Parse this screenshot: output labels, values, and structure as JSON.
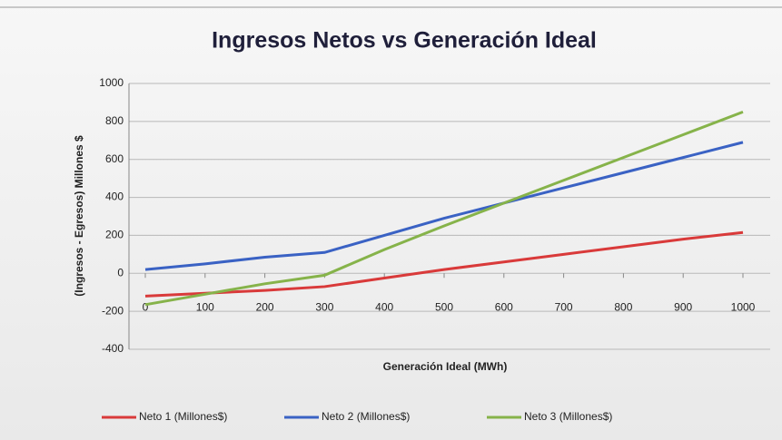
{
  "chart_data": {
    "type": "line",
    "title": "Ingresos Netos vs Generación Ideal",
    "x_label": "Generación Ideal (MWh)",
    "y_label": "(Ingresos - Egresos) Millones $",
    "x": [
      0,
      100,
      200,
      300,
      400,
      500,
      600,
      700,
      800,
      900,
      1000
    ],
    "series": [
      {
        "name": "Neto 1 (Millones$)",
        "color": "#d93a3a",
        "values": [
          -120,
          -105,
          -90,
          -70,
          -25,
          20,
          60,
          100,
          140,
          180,
          215
        ]
      },
      {
        "name": "Neto 2 (Millones$)",
        "color": "#3a62c4",
        "values": [
          20,
          50,
          85,
          110,
          200,
          290,
          370,
          450,
          530,
          610,
          690
        ]
      },
      {
        "name": "Neto 3 (Millones$)",
        "color": "#86b34a",
        "values": [
          -165,
          -110,
          -55,
          -10,
          125,
          250,
          370,
          490,
          610,
          730,
          850
        ]
      }
    ],
    "xlim": [
      0,
      1000
    ],
    "xticks": [
      0,
      100,
      200,
      300,
      400,
      500,
      600,
      700,
      800,
      900,
      1000
    ],
    "ylim": [
      -400,
      1000
    ],
    "yticks": [
      -400,
      -200,
      0,
      200,
      400,
      600,
      800,
      1000
    ],
    "grid": true,
    "legend": "bottom"
  }
}
